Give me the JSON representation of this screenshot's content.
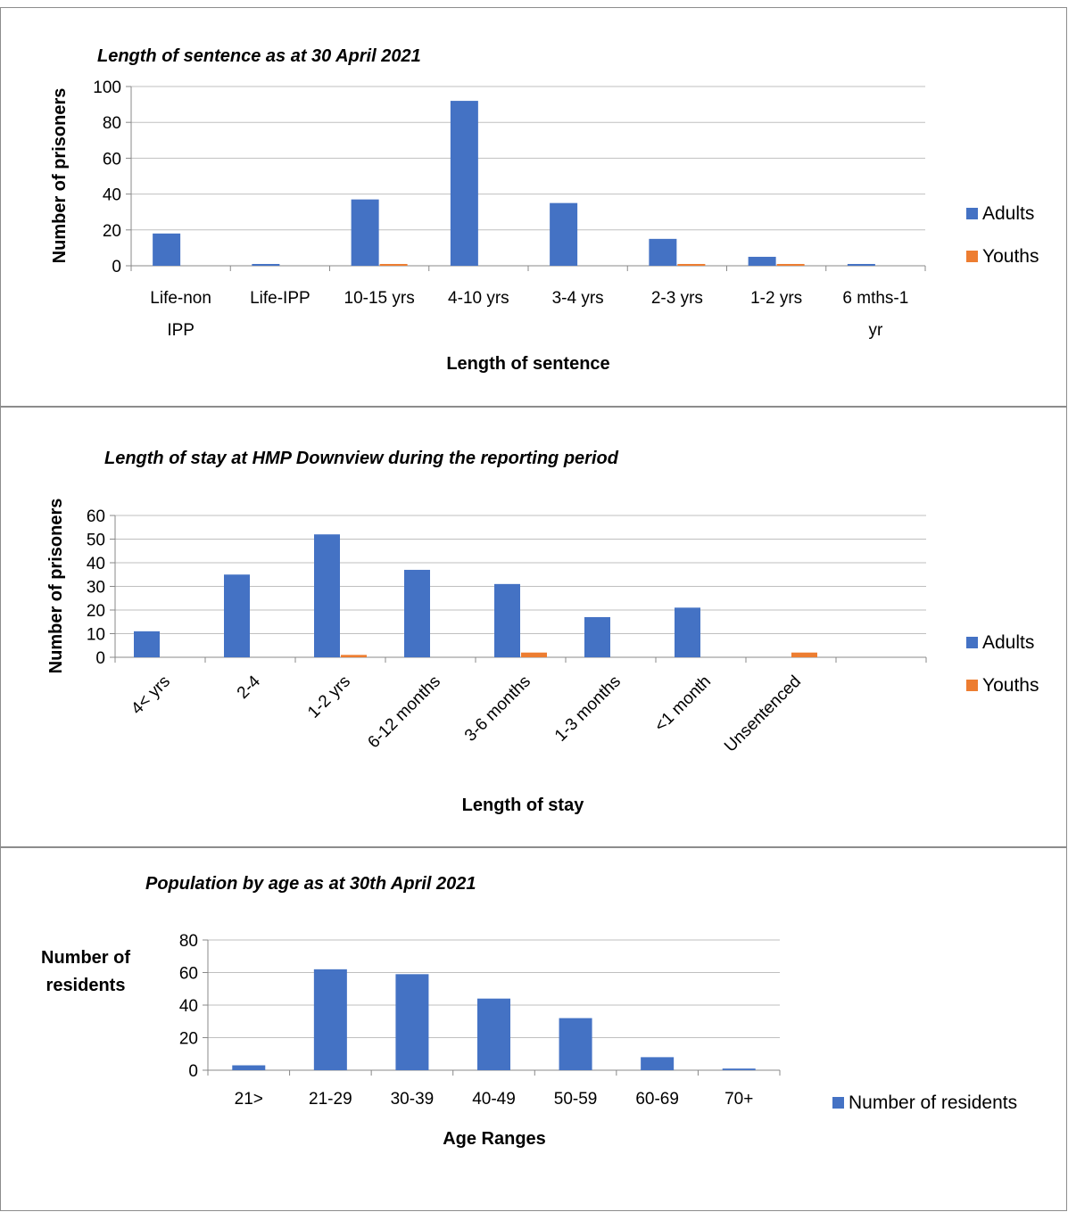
{
  "charts": [
    {
      "type": "bar",
      "title": "Length of sentence as at 30 April 2021",
      "xlabel": "Length of sentence",
      "ylabel": "Number of prisoners",
      "ylim": [
        0,
        100
      ],
      "yticks": [
        0,
        20,
        40,
        60,
        80,
        100
      ],
      "grid": true,
      "legend": "right",
      "categories": [
        [
          "Life-non",
          "IPP"
        ],
        [
          "Life-IPP"
        ],
        [
          "10-15 yrs"
        ],
        [
          "4-10 yrs"
        ],
        [
          "3-4 yrs"
        ],
        [
          "2-3 yrs"
        ],
        [
          "1-2 yrs"
        ],
        [
          "6 mths-1",
          "yr"
        ]
      ],
      "series": [
        {
          "name": "Adults",
          "color": "#4472c4",
          "values": [
            18,
            1,
            37,
            92,
            35,
            15,
            5,
            1
          ]
        },
        {
          "name": "Youths",
          "color": "#ed7d31",
          "values": [
            0,
            0,
            1,
            0,
            0,
            1,
            1,
            0
          ]
        }
      ]
    },
    {
      "type": "bar",
      "title": "Length of stay at HMP Downview during the reporting period",
      "xlabel": "Length of stay",
      "ylabel": "Number of prisoners",
      "ylim": [
        0,
        60
      ],
      "yticks": [
        0,
        10,
        20,
        30,
        40,
        50,
        60
      ],
      "grid": true,
      "legend": "right",
      "categories": [
        [
          "4< yrs"
        ],
        [
          "2-4"
        ],
        [
          "1-2 yrs"
        ],
        [
          "6-12 months"
        ],
        [
          "3-6 months"
        ],
        [
          "1-3 months"
        ],
        [
          "<1 month"
        ],
        [
          "Unsentenced"
        ],
        [
          ""
        ]
      ],
      "series": [
        {
          "name": "Adults",
          "color": "#4472c4",
          "values": [
            11,
            35,
            52,
            37,
            31,
            17,
            21,
            0,
            0
          ]
        },
        {
          "name": "Youths",
          "color": "#ed7d31",
          "values": [
            0,
            0,
            1,
            0,
            2,
            0,
            0,
            2,
            0
          ]
        }
      ]
    },
    {
      "type": "bar",
      "title": "Population by age as at 30th April 2021",
      "xlabel": "Age Ranges",
      "ylabel": "Number of residents",
      "ylim": [
        0,
        80
      ],
      "yticks": [
        0,
        20,
        40,
        60,
        80
      ],
      "grid": true,
      "legend": "right",
      "categories": [
        [
          "21>"
        ],
        [
          "21-29"
        ],
        [
          "30-39"
        ],
        [
          "40-49"
        ],
        [
          "50-59"
        ],
        [
          "60-69"
        ],
        [
          "70+"
        ]
      ],
      "series": [
        {
          "name": "Number of residents",
          "color": "#4472c4",
          "values": [
            3,
            62,
            59,
            44,
            32,
            8,
            1
          ]
        }
      ]
    }
  ]
}
